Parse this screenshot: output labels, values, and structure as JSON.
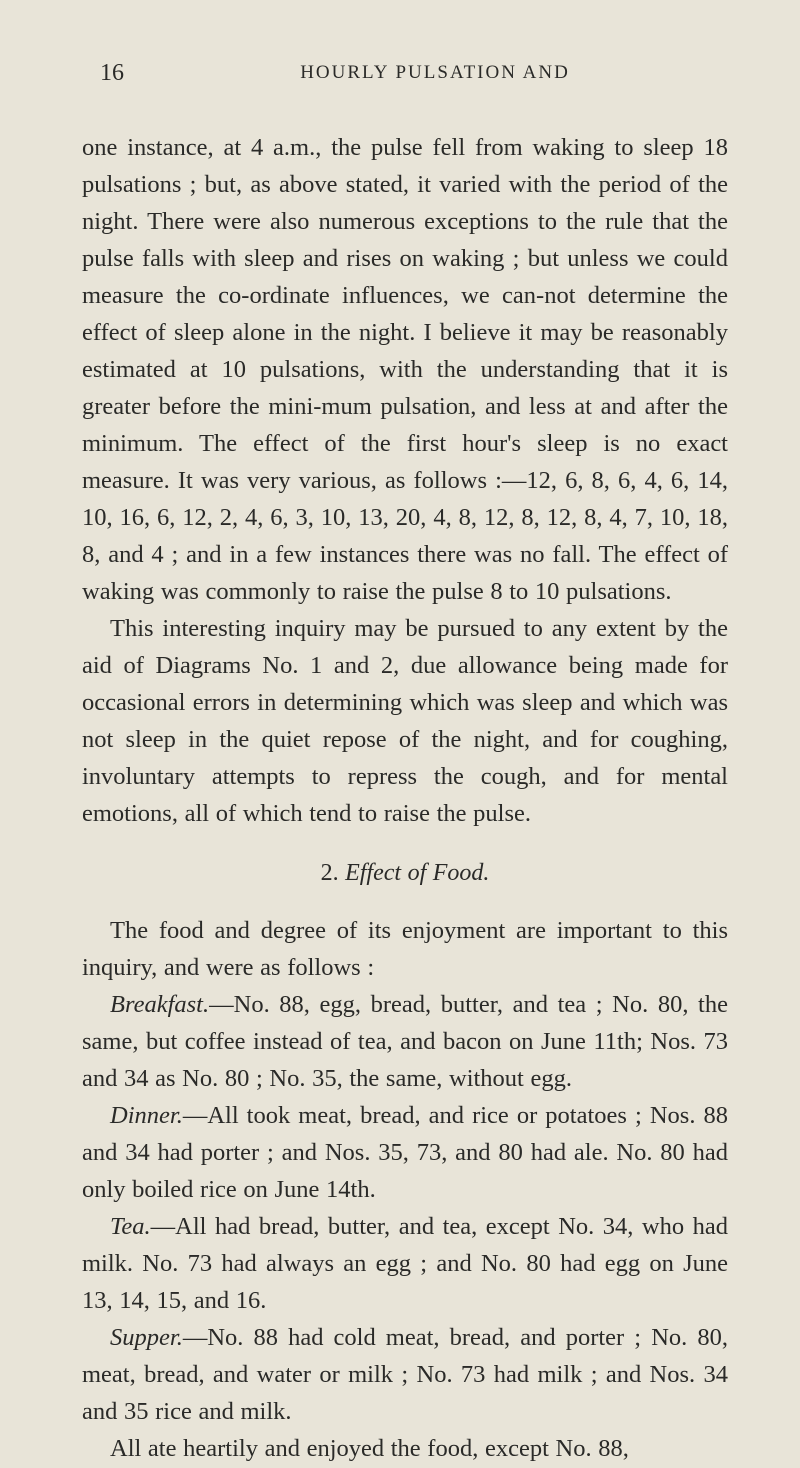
{
  "page": {
    "number": "16",
    "running_header": "HOURLY PULSATION AND",
    "background_color": "#e8e4d8",
    "text_color": "#2a2a28"
  },
  "paragraphs": {
    "p1": "one instance, at 4 a.m., the pulse fell from waking to sleep 18 pulsations ; but, as above stated, it varied with the period of the night. There were also numerous exceptions to the rule that the pulse falls with sleep and rises on waking ; but unless we could measure the co-ordinate influences, we can-not determine the effect of sleep alone in the night. I believe it may be reasonably estimated at 10 pulsations, with the understanding that it is greater before the mini-mum pulsation, and less at and after the minimum. The effect of the first hour's sleep is no exact measure. It was very various, as follows :—12, 6, 8, 6, 4, 6, 14, 10, 16, 6, 12, 2, 4, 6, 3, 10, 13, 20, 4, 8, 12, 8, 12, 8, 4, 7, 10, 18, 8, and 4 ; and in a few instances there was no fall. The effect of waking was commonly to raise the pulse 8 to 10 pulsations.",
    "p2": "This interesting inquiry may be pursued to any extent by the aid of Diagrams No. 1 and 2, due allowance being made for occasional errors in determining which was sleep and which was not sleep in the quiet repose of the night, and for coughing, involuntary attempts to repress the cough, and for mental emotions, all of which tend to raise the pulse.",
    "section_num": "2.",
    "section_title": "Effect of Food.",
    "p3": "The food and degree of its enjoyment are important to this inquiry, and were as follows :",
    "breakfast_label": "Breakfast.",
    "breakfast_text": "—No. 88, egg, bread, butter, and tea ; No. 80, the same, but coffee instead of tea, and bacon on June 11th; Nos. 73 and 34 as No. 80 ; No. 35, the same, without egg.",
    "dinner_label": "Dinner.",
    "dinner_text": "—All took meat, bread, and rice or potatoes ; Nos. 88 and 34 had porter ; and Nos. 35, 73, and 80 had ale. No. 80 had only boiled rice on June 14th.",
    "tea_label": "Tea.",
    "tea_text": "—All had bread, butter, and tea, except No. 34, who had milk. No. 73 had always an egg ; and No. 80 had egg on June 13, 14, 15, and 16.",
    "supper_label": "Supper.",
    "supper_text": "—No. 88 had cold meat, bread, and porter ; No. 80, meat, bread, and water or milk ; No. 73 had milk ; and Nos. 34 and 35 rice and milk.",
    "p_last": "All ate heartily and enjoyed the food, except No. 88,"
  }
}
